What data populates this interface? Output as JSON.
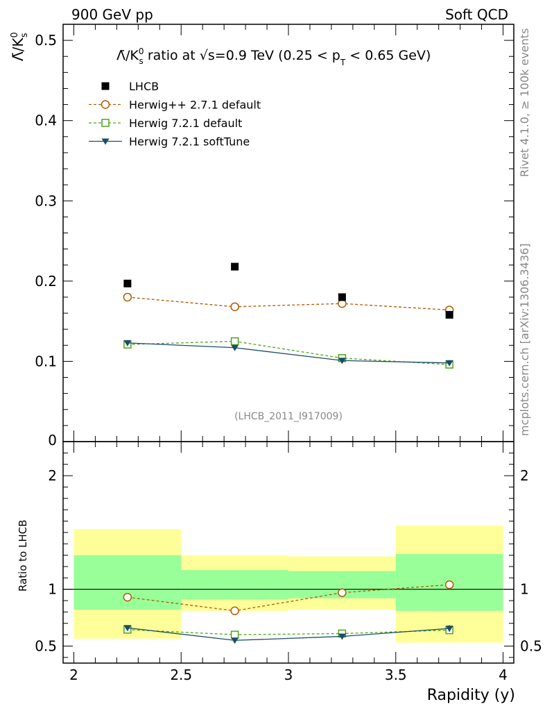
{
  "header": {
    "left": "900 GeV pp",
    "right": "Soft QCD"
  },
  "side_notes": {
    "rivet": "Rivet 4.1.0, ≥ 100k events",
    "mcplots": "mcplots.cern.ch [arXiv:1306.3436]"
  },
  "watermark": "(LHCB_2011_I917009)",
  "chart_data": [
    {
      "type": "scatter",
      "panel": "main",
      "title_parts": {
        "ratio": "Λ̄/K⁰ₛ ratio at √s=0.9 TeV (0.25 < p",
        "sub": "T",
        "tail": " < 0.65 GeV)"
      },
      "ylabel": "Λ̄/K⁰ₛ",
      "ylim": [
        0,
        0.52
      ],
      "yticks": [
        0.1,
        0.2,
        0.3,
        0.4,
        0.5
      ],
      "ytick_labels": [
        "0.1",
        "0.2",
        "0.3",
        "0.4",
        "0.5"
      ],
      "y_zero_label": "0",
      "xlim": [
        1.95,
        4.05
      ],
      "series": [
        {
          "name": "LHCB",
          "style": "square",
          "color": "#000000",
          "x": [
            2.25,
            2.75,
            3.25,
            3.75
          ],
          "y": [
            0.197,
            0.218,
            0.18,
            0.158
          ]
        },
        {
          "name": "Herwig++ 2.7.1 default",
          "style": "circle-dashed",
          "color": "#b35900",
          "x": [
            2.25,
            2.75,
            3.25,
            3.75
          ],
          "y": [
            0.18,
            0.168,
            0.172,
            0.164
          ],
          "err": [
            0.005,
            0.005,
            0.005,
            0.005
          ]
        },
        {
          "name": "Herwig 7.2.1 default",
          "style": "open-square-dashed",
          "color": "#4ea31c",
          "x": [
            2.25,
            2.75,
            3.25,
            3.75
          ],
          "y": [
            0.121,
            0.125,
            0.104,
            0.096
          ],
          "err": [
            0.003,
            0.003,
            0.003,
            0.003
          ]
        },
        {
          "name": "Herwig 7.2.1 softTune",
          "style": "triangle-solid",
          "color": "#1a4e66",
          "x": [
            2.25,
            2.75,
            3.25,
            3.75
          ],
          "y": [
            0.123,
            0.117,
            0.101,
            0.098
          ],
          "err": [
            0.003,
            0.003,
            0.003,
            0.003
          ]
        }
      ]
    },
    {
      "type": "line",
      "panel": "ratio",
      "ylabel": "Ratio to LHCB",
      "ylim": [
        0.35,
        2.3
      ],
      "yticks": [
        0.5,
        1,
        2
      ],
      "ytick_labels": [
        "0.5",
        "1",
        "2"
      ],
      "xlabel": "Rapidity (y)",
      "xlim": [
        1.95,
        4.05
      ],
      "xticks": [
        2,
        2.5,
        3,
        3.5,
        4
      ],
      "xtick_labels": [
        "2",
        "2.5",
        "3",
        "3.5",
        "4"
      ],
      "bands": [
        {
          "x": [
            2.0,
            2.5
          ],
          "yellow": [
            0.565,
            1.53
          ],
          "green": [
            0.82,
            1.3
          ]
        },
        {
          "x": [
            2.5,
            3.0
          ],
          "yellow": [
            0.81,
            1.3
          ],
          "green": [
            0.91,
            1.17
          ]
        },
        {
          "x": [
            3.0,
            3.5
          ],
          "yellow": [
            0.82,
            1.29
          ],
          "green": [
            0.92,
            1.16
          ]
        },
        {
          "x": [
            3.5,
            4.0
          ],
          "yellow": [
            0.53,
            1.56
          ],
          "green": [
            0.81,
            1.31
          ]
        }
      ],
      "series": [
        {
          "name": "Herwig++ 2.7.1 default",
          "style": "circle-dashed",
          "color": "#b35900",
          "x": [
            2.25,
            2.75,
            3.25,
            3.75
          ],
          "y": [
            0.93,
            0.81,
            0.97,
            1.04
          ],
          "err": [
            0.025,
            0.025,
            0.03,
            0.035
          ]
        },
        {
          "name": "Herwig 7.2.1 default",
          "style": "open-square-dashed",
          "color": "#4ea31c",
          "x": [
            2.25,
            2.75,
            3.25,
            3.75
          ],
          "y": [
            0.645,
            0.6,
            0.61,
            0.64
          ],
          "err": [
            0.02,
            0.02,
            0.02,
            0.03
          ]
        },
        {
          "name": "Herwig 7.2.1 softTune",
          "style": "triangle-solid",
          "color": "#1a4e66",
          "x": [
            2.25,
            2.75,
            3.25,
            3.75
          ],
          "y": [
            0.66,
            0.55,
            0.585,
            0.655
          ],
          "err": [
            0.02,
            0.025,
            0.025,
            0.03
          ]
        }
      ]
    }
  ]
}
